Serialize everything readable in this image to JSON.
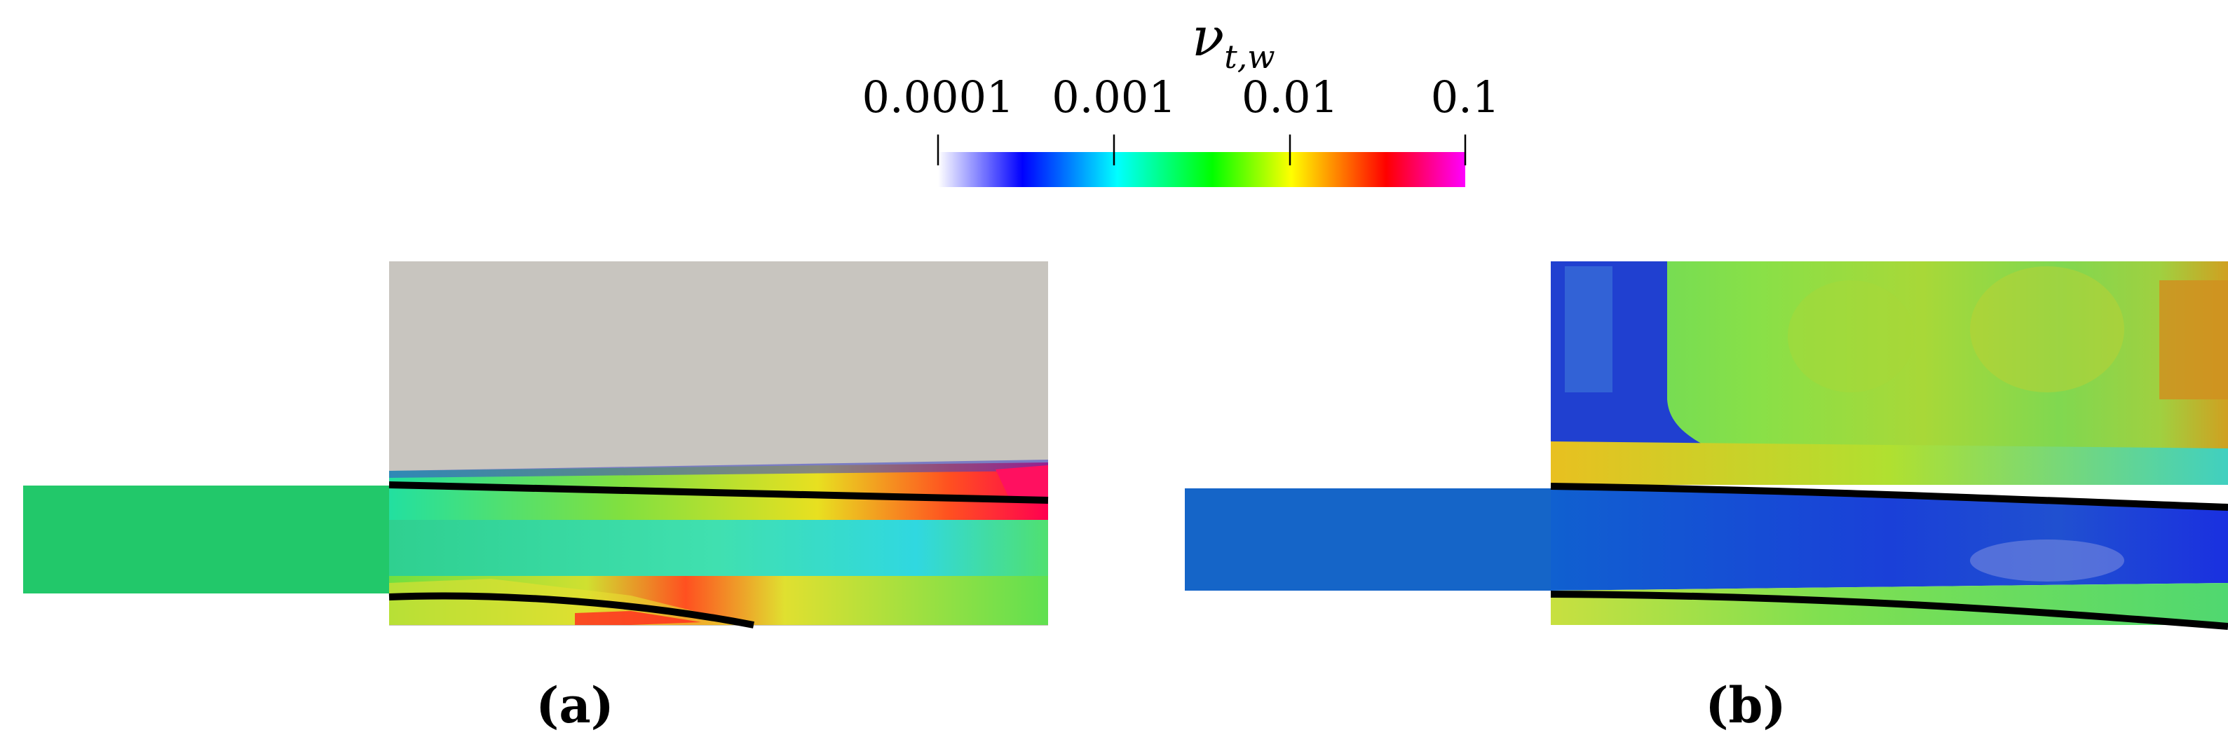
{
  "colorbar": {
    "title": "ν",
    "title_subscript": "t,w",
    "tick_labels": [
      "0.0001",
      "0.001",
      "0.01",
      "0.1"
    ],
    "scale": "log",
    "range": [
      0.0001,
      0.1
    ],
    "colormap": [
      "#ffffff",
      "#0000ff",
      "#00ffff",
      "#00ff00",
      "#ffff00",
      "#ff0000",
      "#ff00ff"
    ]
  },
  "panels": [
    {
      "label": "(a)",
      "background_color": "#c8c5bf",
      "inlet_color": "#22c86a"
    },
    {
      "label": "(b)",
      "inlet_color": "#1565c8"
    }
  ],
  "colors": {
    "interface_line": "#000000"
  }
}
